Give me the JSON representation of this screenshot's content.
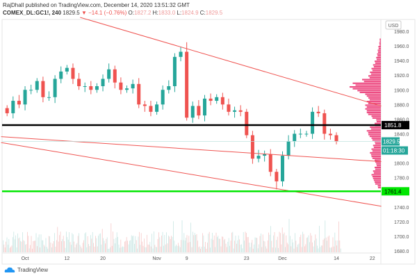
{
  "header": {
    "published": "RajDhall published on TradingView.com, December 14, 2020 13:51:32 GMT",
    "symbol": "COMEX_DL:GC1!, 240",
    "last": "1829.5",
    "change": "−14.1 (−0.76%)",
    "o_label": "O:",
    "o": "1827.2",
    "h_label": "H:",
    "h": "1833.0",
    "l_label": "L:",
    "l": "1824.9",
    "c_label": "C:",
    "c": "1829.5"
  },
  "watermark": "TradingView",
  "chart_data": {
    "type": "candlestick",
    "currency": "USD",
    "ylim": [
      1680,
      1980
    ],
    "y_ticks": [
      "1980.0",
      "1960.0",
      "1940.0",
      "1920.0",
      "1900.0",
      "1880.0",
      "1860.0",
      "1840.0",
      "1800.0",
      "1780.0",
      "1740.0",
      "1720.0",
      "1700.0",
      "1680.0"
    ],
    "x_ticks": [
      {
        "label": "Oct",
        "i": 3
      },
      {
        "label": "12",
        "i": 10
      },
      {
        "label": "20",
        "i": 16
      },
      {
        "label": "Nov",
        "i": 25
      },
      {
        "label": "9",
        "i": 30
      },
      {
        "label": "23",
        "i": 40
      },
      {
        "label": "Dec",
        "i": 46
      },
      {
        "label": "14",
        "i": 55
      },
      {
        "label": "22",
        "i": 61
      }
    ],
    "closes": [
      1868,
      1885,
      1880,
      1900,
      1900,
      1912,
      1890,
      1890,
      1915,
      1925,
      1930,
      1915,
      1905,
      1905,
      1900,
      1905,
      1915,
      1928,
      1910,
      1900,
      1902,
      1908,
      1880,
      1878,
      1870,
      1880,
      1900,
      1905,
      1945,
      1952,
      1862,
      1878,
      1865,
      1888,
      1885,
      1890,
      1880,
      1870,
      1872,
      1870,
      1838,
      1806,
      1810,
      1812,
      1788,
      1775,
      1810,
      1830,
      1840,
      1840,
      1840,
      1870,
      1868,
      1840,
      1838,
      1829.5
    ],
    "first_open": 1875,
    "trendlines": [
      {
        "from": [
          12.2,
          1999
        ],
        "to": [
          62.5,
          1878
        ],
        "color": "#ef5350"
      },
      {
        "from": [
          -1,
          1836
        ],
        "to": [
          62.5,
          1802
        ],
        "color": "#ef5350"
      },
      {
        "from": [
          -1,
          1828
        ],
        "to": [
          62.5,
          1741
        ],
        "color": "#ef5350"
      }
    ],
    "levels": [
      {
        "price": 1851.8,
        "label": "1851.8",
        "color": "#000000"
      },
      {
        "price": 1761.4,
        "label": "1761.4",
        "color": "#00e600"
      }
    ],
    "last_price": {
      "label": "1829.5",
      "countdown": "01:18:30",
      "color": "#26a69a"
    },
    "volume_profile": {
      "start": 1765,
      "step": 5,
      "values": [
        0.1,
        0.2,
        0.25,
        0.3,
        0.25,
        0.2,
        0.15,
        0.2,
        0.3,
        0.35,
        0.3,
        0.25,
        0.2,
        0.3,
        0.4,
        0.45,
        0.35,
        0.2,
        0.15,
        0.3,
        0.45,
        0.5,
        0.5,
        0.45,
        0.4,
        0.5,
        0.75,
        1.0,
        0.9,
        0.6,
        0.4,
        0.35,
        0.3,
        0.25,
        0.2,
        0.15,
        0.12,
        0.1,
        0.08,
        0.05,
        0.04
      ],
      "color": "#e91e63"
    },
    "up_color": "#26a69a",
    "down_color": "#ef5350"
  }
}
